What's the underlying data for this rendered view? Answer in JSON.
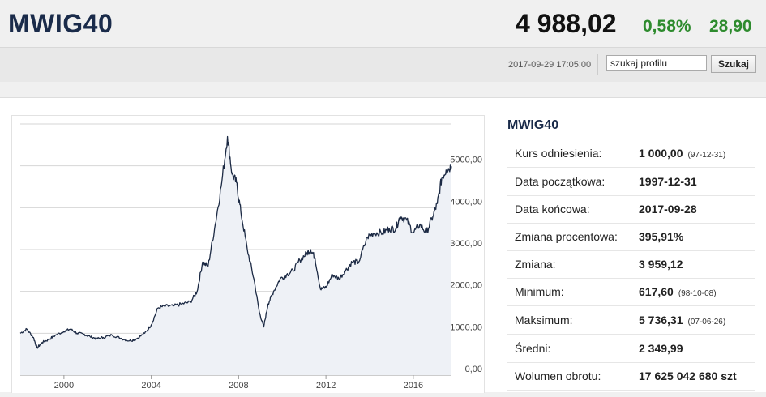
{
  "header": {
    "ticker": "MWIG40",
    "price": "4 988,02",
    "change_pct": "0,58%",
    "change_abs": "28,90"
  },
  "toolbar": {
    "timestamp": "2017-09-29 17:05:00",
    "search_value": "szukaj profilu",
    "search_button": "Szukaj"
  },
  "panel": {
    "title": "MWIG40",
    "rows": [
      {
        "label": "Kurs odniesienia:",
        "value": "1 000,00",
        "date": "(97-12-31)"
      },
      {
        "label": "Data początkowa:",
        "value": "1997-12-31",
        "date": ""
      },
      {
        "label": "Data końcowa:",
        "value": "2017-09-28",
        "date": ""
      },
      {
        "label": "Zmiana procentowa:",
        "value": "395,91%",
        "date": ""
      },
      {
        "label": "Zmiana:",
        "value": "3 959,12",
        "date": ""
      },
      {
        "label": "Minimum:",
        "value": "617,60",
        "date": "(98-10-08)"
      },
      {
        "label": "Maksimum:",
        "value": "5 736,31",
        "date": "(07-06-26)"
      },
      {
        "label": "Średni:",
        "value": "2 349,99",
        "date": ""
      },
      {
        "label": "Wolumen obrotu:",
        "value": "17 625 042 680 szt",
        "date": ""
      }
    ]
  },
  "chart_data": {
    "type": "area",
    "x_ticks": [
      "2000",
      "2004",
      "2008",
      "2012",
      "2016"
    ],
    "y_ticks": [
      "0,00",
      "1000,00",
      "2000,00",
      "3000,00",
      "4000,00",
      "5000,00"
    ],
    "xlim": [
      1998.0,
      2017.75
    ],
    "ylim": [
      0,
      6000
    ],
    "grid": true,
    "line_color": "#1c2a44",
    "fill_color": "#eef1f6",
    "points": [
      [
        1998.0,
        1000
      ],
      [
        1998.3,
        1100
      ],
      [
        1998.6,
        900
      ],
      [
        1998.77,
        650
      ],
      [
        1999.0,
        780
      ],
      [
        1999.3,
        850
      ],
      [
        1999.6,
        950
      ],
      [
        2000.0,
        1050
      ],
      [
        2000.3,
        1100
      ],
      [
        2000.6,
        1000
      ],
      [
        2000.9,
        980
      ],
      [
        2001.2,
        920
      ],
      [
        2001.5,
        870
      ],
      [
        2001.8,
        900
      ],
      [
        2002.2,
        960
      ],
      [
        2002.6,
        880
      ],
      [
        2003.0,
        820
      ],
      [
        2003.3,
        860
      ],
      [
        2003.7,
        1000
      ],
      [
        2004.0,
        1200
      ],
      [
        2004.3,
        1600
      ],
      [
        2004.6,
        1650
      ],
      [
        2005.0,
        1650
      ],
      [
        2005.4,
        1700
      ],
      [
        2005.8,
        1750
      ],
      [
        2006.1,
        2000
      ],
      [
        2006.35,
        2700
      ],
      [
        2006.6,
        2600
      ],
      [
        2006.9,
        3500
      ],
      [
        2007.2,
        4500
      ],
      [
        2007.49,
        5700
      ],
      [
        2007.7,
        4800
      ],
      [
        2007.9,
        4600
      ],
      [
        2008.1,
        3900
      ],
      [
        2008.4,
        3000
      ],
      [
        2008.7,
        2300
      ],
      [
        2008.95,
        1500
      ],
      [
        2009.15,
        1150
      ],
      [
        2009.35,
        1700
      ],
      [
        2009.6,
        2000
      ],
      [
        2009.9,
        2300
      ],
      [
        2010.2,
        2400
      ],
      [
        2010.5,
        2500
      ],
      [
        2010.8,
        2750
      ],
      [
        2011.1,
        2900
      ],
      [
        2011.3,
        3000
      ],
      [
        2011.5,
        2800
      ],
      [
        2011.75,
        2050
      ],
      [
        2012.0,
        2100
      ],
      [
        2012.3,
        2400
      ],
      [
        2012.6,
        2300
      ],
      [
        2012.9,
        2500
      ],
      [
        2013.2,
        2700
      ],
      [
        2013.5,
        2700
      ],
      [
        2013.9,
        3300
      ],
      [
        2014.2,
        3400
      ],
      [
        2014.6,
        3400
      ],
      [
        2014.9,
        3500
      ],
      [
        2015.2,
        3500
      ],
      [
        2015.4,
        3800
      ],
      [
        2015.7,
        3700
      ],
      [
        2016.0,
        3400
      ],
      [
        2016.3,
        3600
      ],
      [
        2016.6,
        3400
      ],
      [
        2016.9,
        3800
      ],
      [
        2017.1,
        4100
      ],
      [
        2017.3,
        4700
      ],
      [
        2017.5,
        4900
      ],
      [
        2017.75,
        4988
      ]
    ]
  }
}
